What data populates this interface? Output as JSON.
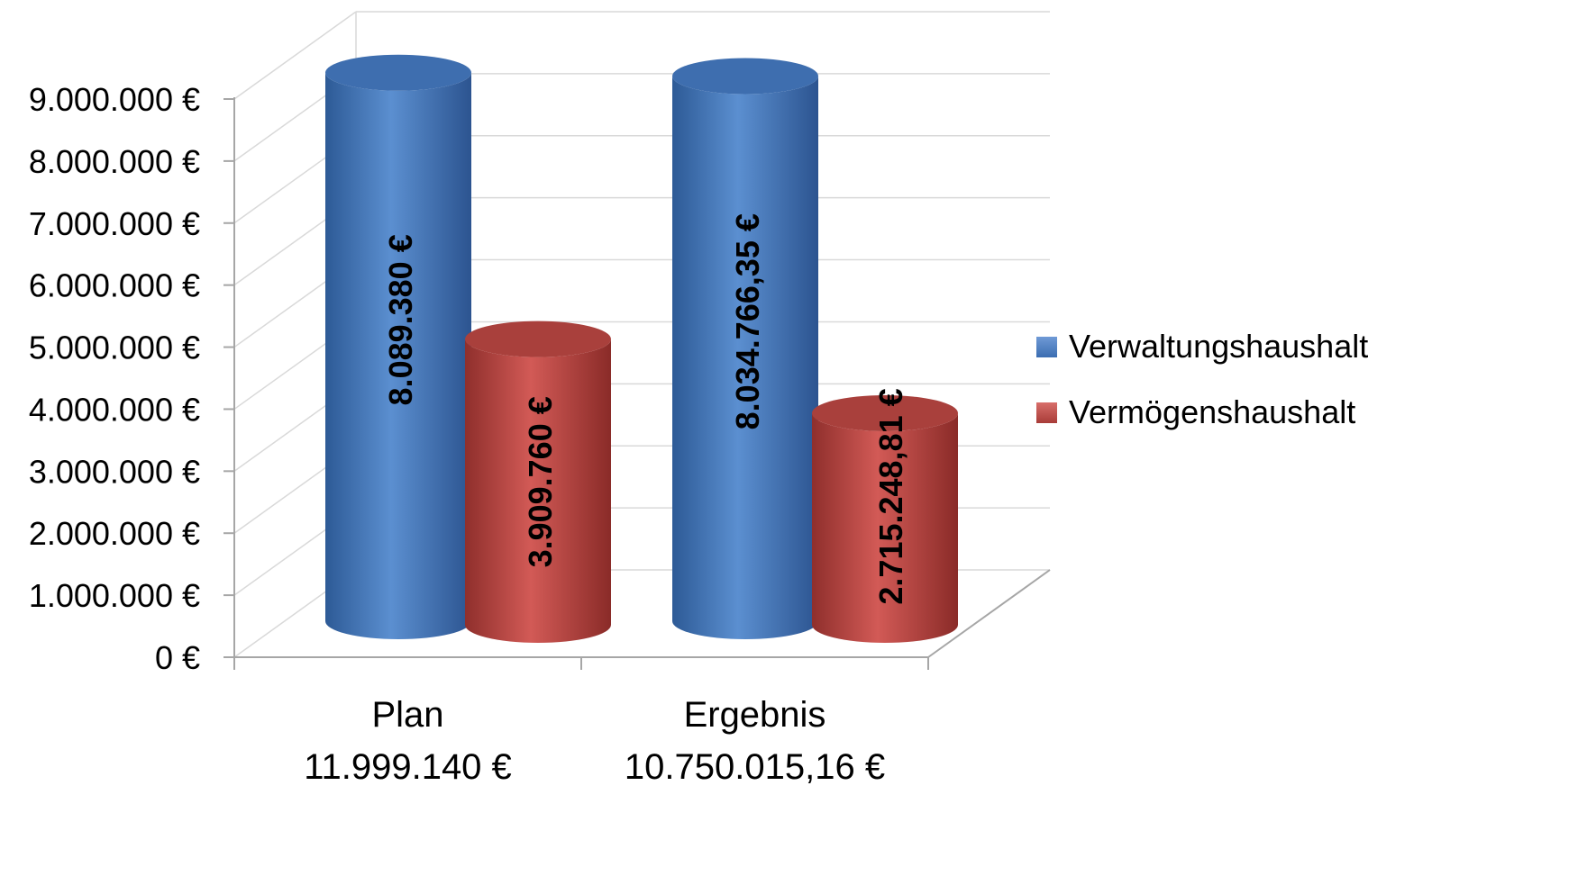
{
  "chart_data": {
    "type": "bar",
    "style": "3d-cylinder",
    "categories": [
      "Plan",
      "Ergebnis"
    ],
    "category_subtitles": [
      "11.999.140 €",
      "10.750.015,16 €"
    ],
    "series": [
      {
        "name": "Verwaltungshaushalt",
        "color": "#4F81BD",
        "values": [
          8089380,
          8034766.35
        ],
        "labels": [
          "8.089.380 €",
          "8.034.766,35 €"
        ]
      },
      {
        "name": "Vermögenshaushalt",
        "color": "#C0504D",
        "values": [
          3909760,
          2715248.81
        ],
        "labels": [
          "3.909.760 €",
          "2.715.248,81 €"
        ]
      }
    ],
    "ylim": [
      0,
      9000000
    ],
    "yticks": [
      0,
      1000000,
      2000000,
      3000000,
      4000000,
      5000000,
      6000000,
      7000000,
      8000000,
      9000000
    ],
    "ytick_labels": [
      "0 €",
      "1.000.000 €",
      "2.000.000 €",
      "3.000.000 €",
      "4.000.000 €",
      "5.000.000 €",
      "6.000.000 €",
      "7.000.000 €",
      "8.000.000 €",
      "9.000.000 €"
    ],
    "grid": true,
    "legend_position": "right",
    "title": "",
    "xlabel": "",
    "ylabel": ""
  }
}
